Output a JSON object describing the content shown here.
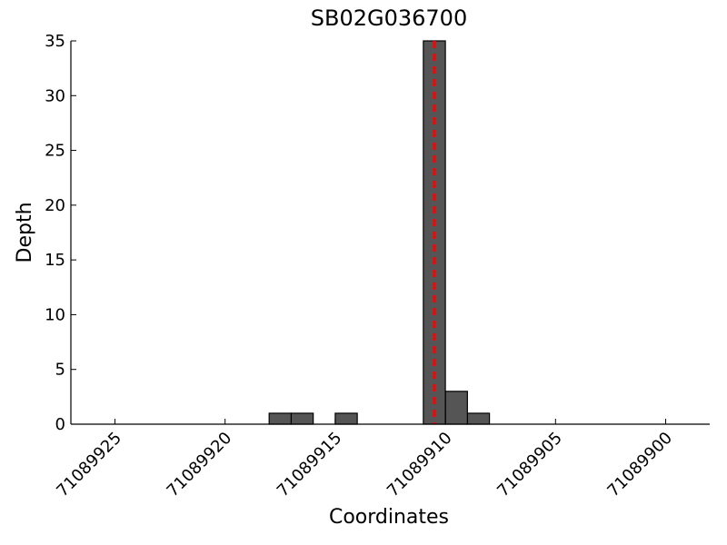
{
  "chart_data": {
    "type": "histogram",
    "title": "SB02G036700",
    "x_label": "Coordinates",
    "y_label": "Depth",
    "bins": [
      71089908,
      71089909,
      71089910,
      71089911,
      71089912,
      71089913,
      71089914,
      71089915,
      71089916,
      71089917,
      71089918
    ],
    "values": [
      1,
      3,
      35,
      0,
      0,
      0,
      1,
      0,
      1,
      1
    ],
    "color": "#555555",
    "reference_line": {
      "x": 71089910.5,
      "color": "#ff0000"
    },
    "xlim": [
      71089927,
      71089898
    ],
    "xticks": [
      71089925,
      71089920,
      71089915,
      71089910,
      71089905,
      71089900
    ],
    "ylim": [
      0,
      35
    ],
    "yticks": [
      0,
      5,
      10,
      15,
      20,
      25,
      30,
      35
    ]
  }
}
